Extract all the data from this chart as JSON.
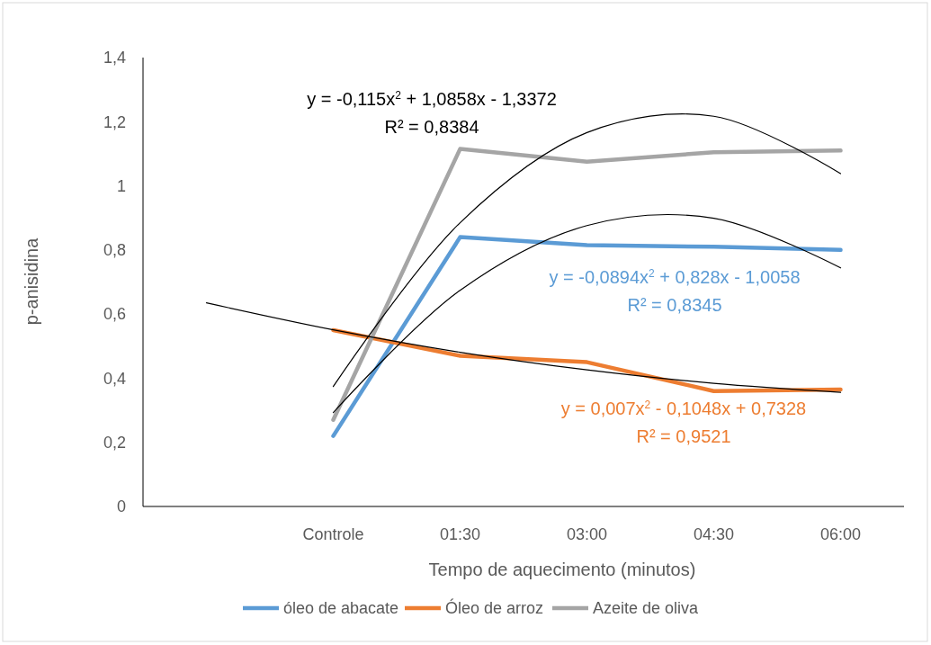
{
  "chart_data": {
    "type": "line",
    "xlabel": "Tempo de aquecimento (minutos)",
    "ylabel": "p-anisidina",
    "categories": [
      null,
      "Controle",
      "01:30",
      "03:00",
      "04:30",
      "06:00"
    ],
    "ylim": [
      0,
      1.4
    ],
    "yticks": [
      0,
      {
        "value": 0.2,
        "label": "0,2"
      },
      {
        "value": 0.4,
        "label": "0,4"
      },
      {
        "value": 0.6,
        "label": "0,6"
      },
      {
        "value": 0.8,
        "label": "0,8"
      },
      1,
      {
        "value": 1.2,
        "label": "1,2"
      },
      {
        "value": 1.4,
        "label": "1,4"
      }
    ],
    "grid": false,
    "legend": "bottom",
    "marker": "none",
    "line_style": "solid",
    "series": [
      {
        "name": "óleo de abacate",
        "color": "#5b9bd5",
        "values": [
          null,
          0.22,
          0.84,
          0.815,
          0.81,
          0.8
        ]
      },
      {
        "name": "Óleo de arroz",
        "color": "#ed7d31",
        "values": [
          null,
          0.55,
          0.47,
          0.45,
          0.36,
          0.365
        ]
      },
      {
        "name": "Azeite de oliva",
        "color": "#a5a5a5",
        "values": [
          null,
          0.27,
          1.115,
          1.075,
          1.105,
          1.11
        ]
      },
      {
        "color": "#000000",
        "values": [
          null,
          0.374,
          0.885,
          1.166,
          1.217,
          1.038
        ]
      },
      {
        "color": "#000000",
        "values": [
          null,
          0.293,
          0.674,
          0.876,
          0.899,
          0.744
        ]
      },
      {
        "color": "#000000",
        "values": [
          0.635,
          0.551,
          0.481,
          0.426,
          0.384,
          0.356
        ]
      }
    ],
    "annotations": [
      "y = -0,115x$^{2}$ + 1,0858x - 1,3372",
      "R² = 0,8384",
      "y = -0,0894x$^{2}$ + 0,828x - 1,0058",
      "R² = 0,8345",
      "y = 0,007x$^{2}$ - 0,1048x + 0,7328",
      "R² = 0,9521"
    ]
  }
}
